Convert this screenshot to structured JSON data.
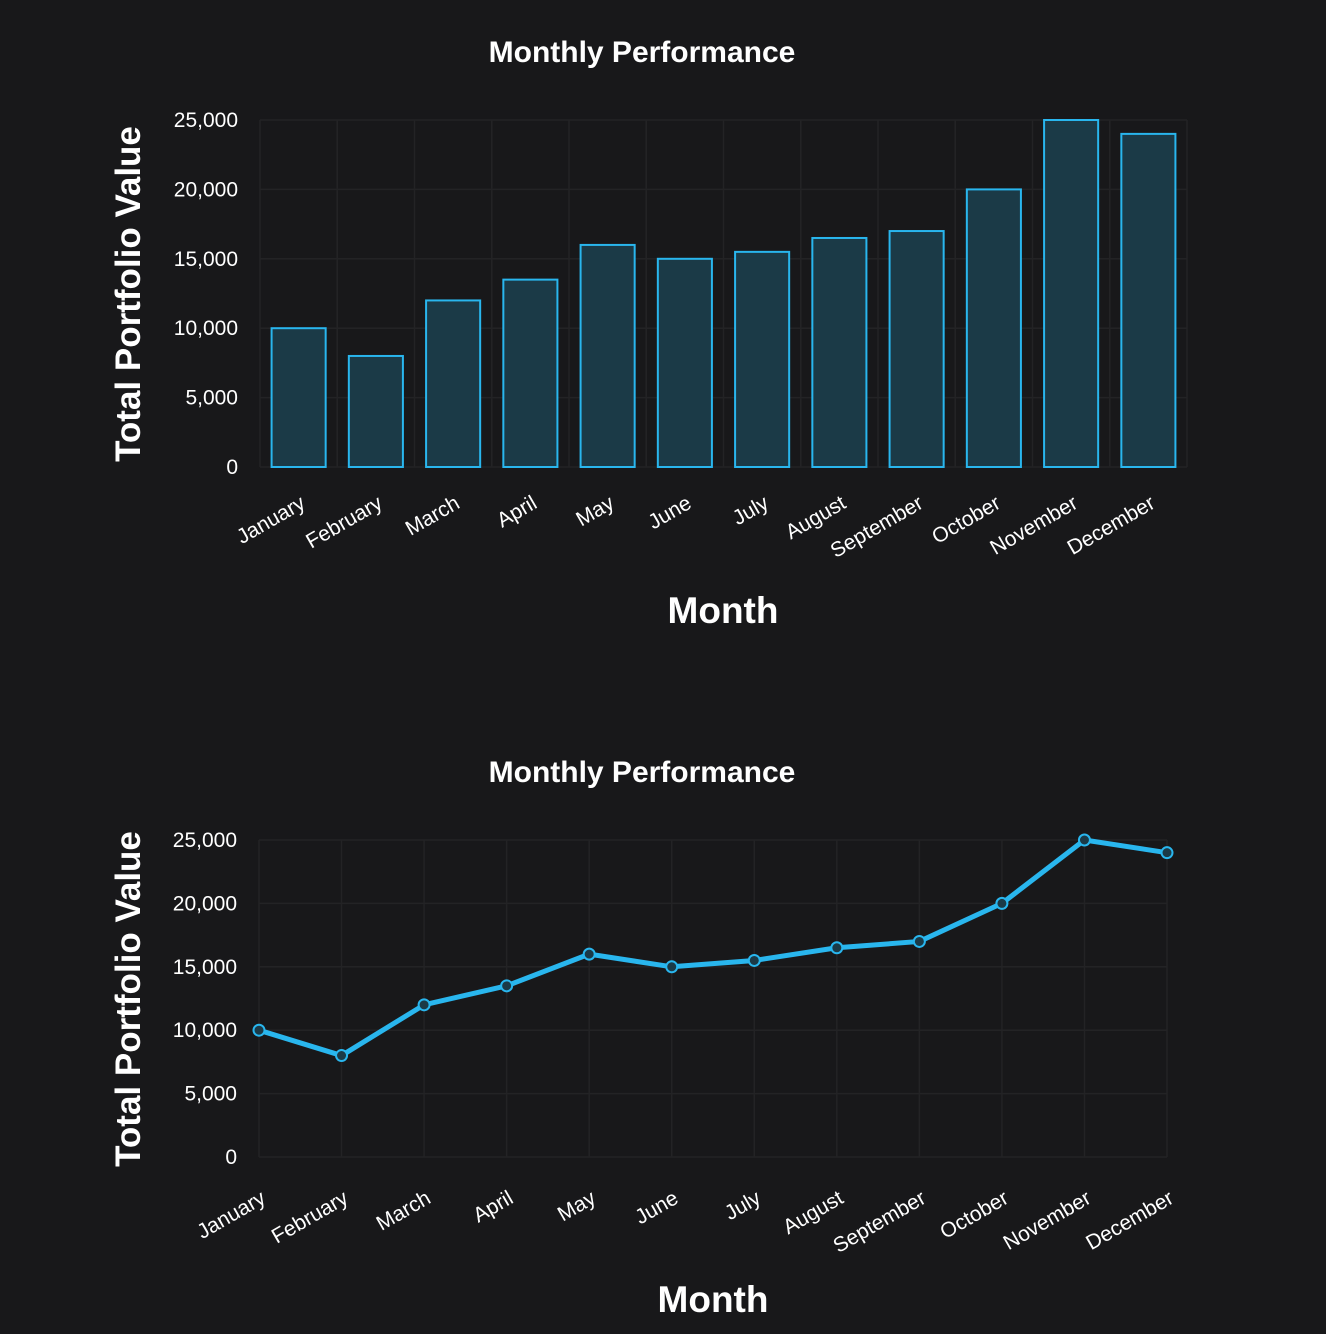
{
  "chart_data": [
    {
      "type": "bar",
      "title": "Monthly Performance",
      "xlabel": "Month",
      "ylabel": "Total Portfolio Value",
      "categories": [
        "January",
        "February",
        "March",
        "April",
        "May",
        "June",
        "July",
        "August",
        "September",
        "October",
        "November",
        "December"
      ],
      "values": [
        10000,
        8000,
        12000,
        13500,
        16000,
        15000,
        15500,
        16500,
        17000,
        20000,
        25000,
        24000
      ],
      "ylim": [
        0,
        25000
      ],
      "yticks": [
        0,
        5000,
        10000,
        15000,
        20000,
        25000
      ],
      "ytick_labels": [
        "0",
        "5,000",
        "10,000",
        "15,000",
        "20,000",
        "25,000"
      ],
      "grid": true,
      "colors": {
        "bar_fill": "#1b3a47",
        "bar_stroke": "#29b6ee"
      }
    },
    {
      "type": "line",
      "title": "Monthly Performance",
      "xlabel": "Month",
      "ylabel": "Total Portfolio Value",
      "categories": [
        "January",
        "February",
        "March",
        "April",
        "May",
        "June",
        "July",
        "August",
        "September",
        "October",
        "November",
        "December"
      ],
      "values": [
        10000,
        8000,
        12000,
        13500,
        16000,
        15000,
        15500,
        16500,
        17000,
        20000,
        25000,
        24000
      ],
      "ylim": [
        0,
        25000
      ],
      "yticks": [
        0,
        5000,
        10000,
        15000,
        20000,
        25000
      ],
      "ytick_labels": [
        "0",
        "5,000",
        "10,000",
        "15,000",
        "20,000",
        "25,000"
      ],
      "grid": true,
      "markers": "circle",
      "colors": {
        "line": "#29b6ee",
        "marker_fill": "#1b3a47"
      }
    }
  ]
}
